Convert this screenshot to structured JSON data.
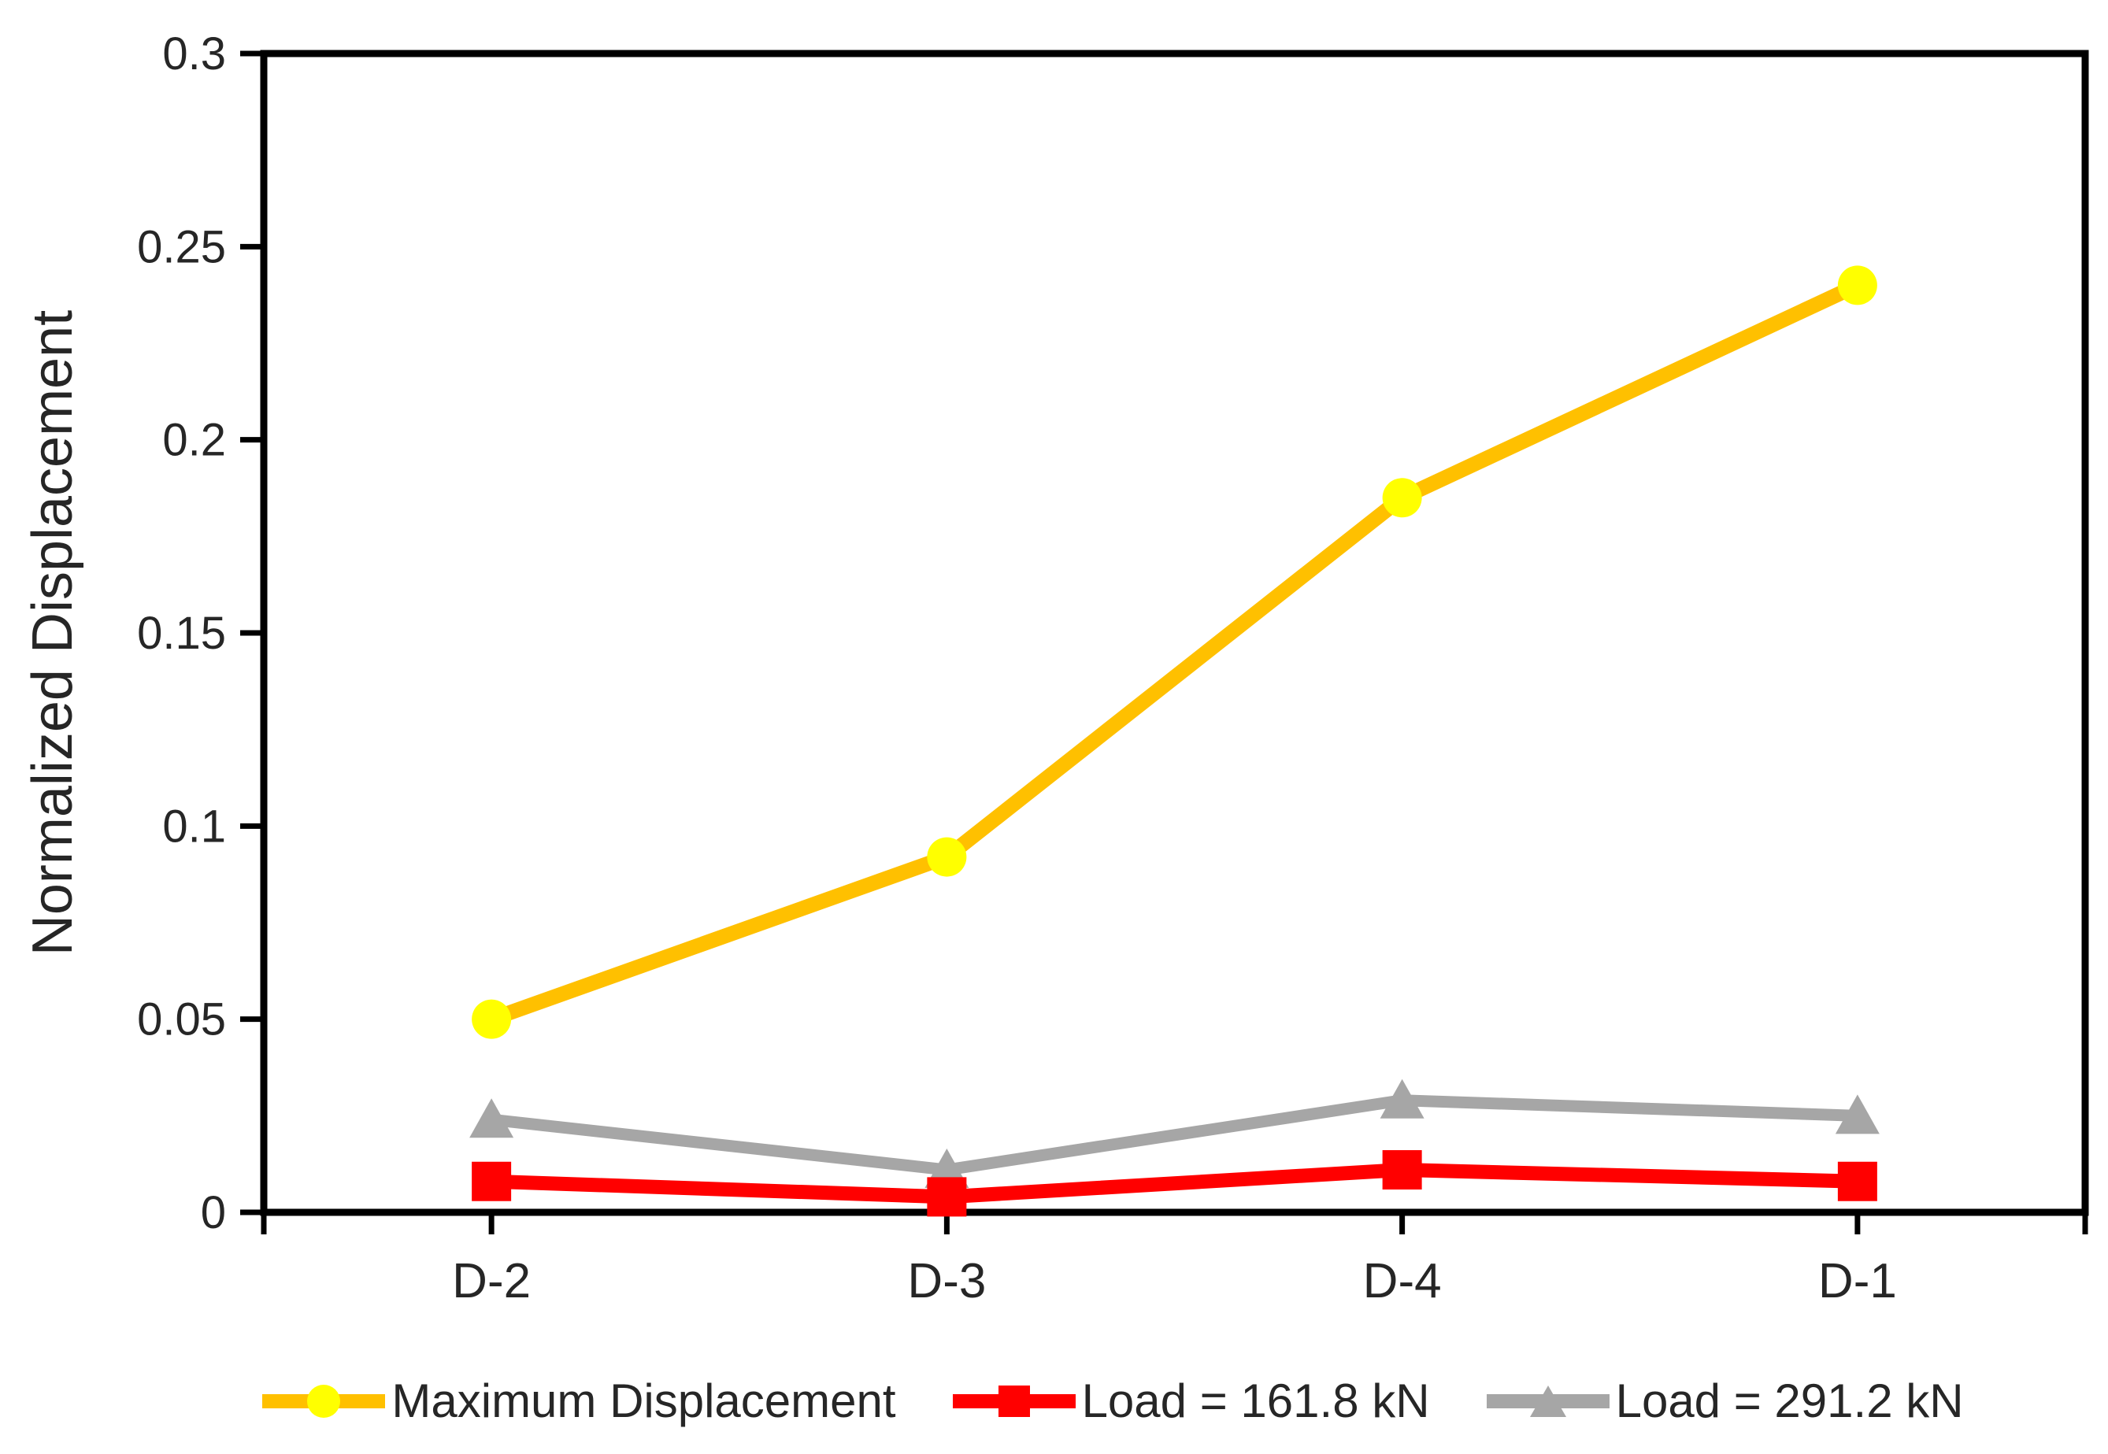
{
  "chart_data": {
    "type": "line",
    "title": "",
    "xlabel": "",
    "ylabel": "Normalized Displacement",
    "categories": [
      "D-2",
      "D-3",
      "D-4",
      "D-1"
    ],
    "ylim": [
      0,
      0.3
    ],
    "yticks": [
      0,
      0.05,
      0.1,
      0.15,
      0.2,
      0.25,
      0.3
    ],
    "ytick_labels": [
      "0",
      "0.05",
      "0.1",
      "0.15",
      "0.2",
      "0.25",
      "0.3"
    ],
    "grid": false,
    "legend_position": "bottom",
    "axis_color": "#000000",
    "text_color": "#262626",
    "series": [
      {
        "name": "Maximum Displacement",
        "color": "#FFC000",
        "marker": "circle",
        "marker_color": "#FFFF00",
        "values": [
          0.05,
          0.092,
          0.185,
          0.24
        ]
      },
      {
        "name": "Load = 161.8 kN",
        "color": "#FF0000",
        "marker": "square",
        "marker_color": "#FF0000",
        "values": [
          0.008,
          0.004,
          0.011,
          0.008
        ]
      },
      {
        "name": "Load = 291.2 kN",
        "color": "#A6A6A6",
        "marker": "triangle",
        "marker_color": "#A6A6A6",
        "values": [
          0.024,
          0.011,
          0.029,
          0.025
        ]
      }
    ]
  }
}
